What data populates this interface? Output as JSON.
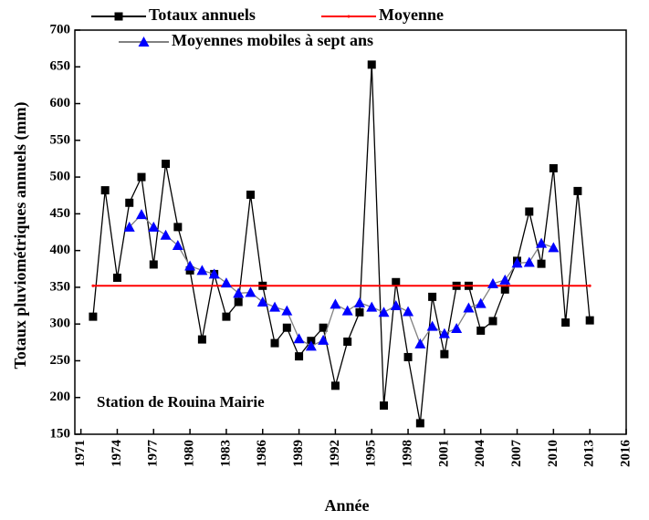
{
  "chart_data": {
    "type": "line",
    "x_label": "Année",
    "y_label": "Totaux pluviométriques annuels (mm)",
    "annotation": "Station de Rouina Mairie",
    "xlim": [
      1970.5,
      2016
    ],
    "ylim": [
      150,
      700
    ],
    "xticks": [
      1971,
      1974,
      1977,
      1980,
      1983,
      1986,
      1989,
      1992,
      1995,
      1998,
      2001,
      2004,
      2007,
      2010,
      2013,
      2016
    ],
    "yticks": [
      150,
      200,
      250,
      300,
      350,
      400,
      450,
      500,
      550,
      600,
      650,
      700
    ],
    "series": [
      {
        "name": "Totaux annuels",
        "color": "#000000",
        "marker": "square",
        "x": [
          1972,
          1973,
          1974,
          1975,
          1976,
          1977,
          1978,
          1979,
          1980,
          1981,
          1982,
          1983,
          1984,
          1985,
          1986,
          1987,
          1988,
          1989,
          1990,
          1991,
          1992,
          1993,
          1994,
          1995,
          1996,
          1997,
          1998,
          1999,
          2000,
          2001,
          2002,
          2003,
          2004,
          2005,
          2006,
          2007,
          2008,
          2009,
          2010,
          2011,
          2012,
          2013
        ],
        "values": [
          310,
          482,
          363,
          465,
          500,
          381,
          518,
          432,
          373,
          279,
          368,
          310,
          330,
          476,
          352,
          274,
          295,
          256,
          277,
          295,
          216,
          276,
          316,
          653,
          189,
          357,
          255,
          165,
          337,
          259,
          352,
          352,
          291,
          304,
          347,
          386,
          453,
          382,
          512,
          302,
          481,
          305
        ]
      },
      {
        "name": "Moyenne",
        "color": "#ff0000",
        "marker": "none",
        "x": [
          1972,
          2013
        ],
        "values": [
          352,
          352
        ]
      },
      {
        "name": "Moyennes mobiles à sept ans",
        "color": "#808080",
        "marker": "triangle",
        "marker_color": "#0000ff",
        "x": [
          1975,
          1976,
          1977,
          1978,
          1979,
          1980,
          1981,
          1982,
          1983,
          1984,
          1985,
          1986,
          1987,
          1988,
          1989,
          1990,
          1991,
          1992,
          1993,
          1994,
          1995,
          1996,
          1997,
          1998,
          1999,
          2000,
          2001,
          2002,
          2003,
          2004,
          2005,
          2006,
          2007,
          2008,
          2009,
          2010
        ],
        "values": [
          432,
          449,
          432,
          421,
          407,
          379,
          373,
          368,
          356,
          342,
          343,
          330,
          323,
          318,
          280,
          270,
          278,
          327,
          318,
          329,
          323,
          316,
          325,
          317,
          273,
          297,
          287,
          294,
          322,
          328,
          355,
          360,
          383,
          384,
          410,
          404
        ]
      }
    ]
  }
}
